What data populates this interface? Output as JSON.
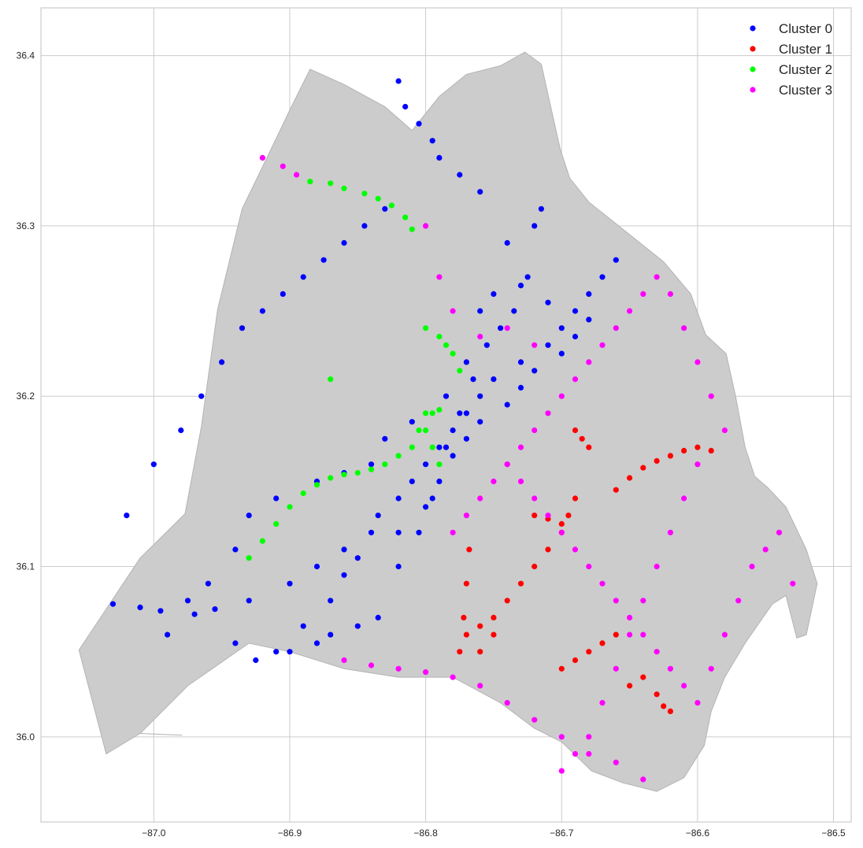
{
  "chart_data": {
    "type": "scatter",
    "title": "",
    "xlabel": "",
    "ylabel": "",
    "xlim": [
      -87.083,
      -86.487
    ],
    "ylim": [
      35.95,
      36.428
    ],
    "grid": true,
    "x_ticks": [
      -87.0,
      -86.9,
      -86.8,
      -86.7,
      -86.6,
      -86.5
    ],
    "x_tick_labels": [
      "−87.0",
      "−86.9",
      "−86.8",
      "−86.7",
      "−86.6",
      "−86.5"
    ],
    "y_ticks": [
      36.0,
      36.1,
      36.2,
      36.3,
      36.4
    ],
    "y_tick_labels": [
      "36.0",
      "36.1",
      "36.2",
      "36.3",
      "36.4"
    ],
    "background_region": {
      "name": "county-boundary",
      "fill": "#cccccc",
      "boundary": [
        [
          -86.979,
          36.001
        ],
        [
          -87.01,
          36.002
        ],
        [
          -87.035,
          35.99
        ],
        [
          -87.055,
          36.051
        ],
        [
          -87.01,
          36.105
        ],
        [
          -86.977,
          36.131
        ],
        [
          -86.965,
          36.182
        ],
        [
          -86.953,
          36.251
        ],
        [
          -86.935,
          36.31
        ],
        [
          -86.915,
          36.343
        ],
        [
          -86.9,
          36.368
        ],
        [
          -86.885,
          36.392
        ],
        [
          -86.86,
          36.383
        ],
        [
          -86.83,
          36.37
        ],
        [
          -86.81,
          36.356
        ],
        [
          -86.79,
          36.376
        ],
        [
          -86.77,
          36.389
        ],
        [
          -86.745,
          36.394
        ],
        [
          -86.727,
          36.402
        ],
        [
          -86.715,
          36.395
        ],
        [
          -86.708,
          36.37
        ],
        [
          -86.701,
          36.345
        ],
        [
          -86.694,
          36.328
        ],
        [
          -86.68,
          36.314
        ],
        [
          -86.658,
          36.3
        ],
        [
          -86.625,
          36.279
        ],
        [
          -86.605,
          36.26
        ],
        [
          -86.594,
          36.236
        ],
        [
          -86.579,
          36.225
        ],
        [
          -86.572,
          36.2
        ],
        [
          -86.565,
          36.17
        ],
        [
          -86.558,
          36.153
        ],
        [
          -86.548,
          36.146
        ],
        [
          -86.535,
          36.135
        ],
        [
          -86.52,
          36.11
        ],
        [
          -86.512,
          36.09
        ],
        [
          -86.52,
          36.06
        ],
        [
          -86.527,
          36.058
        ],
        [
          -86.535,
          36.083
        ],
        [
          -86.545,
          36.078
        ],
        [
          -86.565,
          36.055
        ],
        [
          -86.58,
          36.035
        ],
        [
          -86.59,
          36.015
        ],
        [
          -86.595,
          35.995
        ],
        [
          -86.61,
          35.976
        ],
        [
          -86.63,
          35.968
        ],
        [
          -86.655,
          35.973
        ],
        [
          -86.678,
          35.98
        ],
        [
          -86.7,
          35.997
        ],
        [
          -86.72,
          36.005
        ],
        [
          -86.745,
          36.02
        ],
        [
          -86.78,
          36.035
        ],
        [
          -86.82,
          36.035
        ],
        [
          -86.86,
          36.04
        ],
        [
          -86.9,
          36.05
        ],
        [
          -86.93,
          36.055
        ],
        [
          -86.975,
          36.03
        ],
        [
          -87.01,
          36.002
        ]
      ]
    },
    "series": [
      {
        "name": "Cluster 0",
        "color": "#0000ff",
        "x": [
          -87.03,
          -87.01,
          -86.995,
          -86.97,
          -86.955,
          -86.93,
          -86.9,
          -86.88,
          -86.86,
          -86.84,
          -86.835,
          -86.82,
          -86.81,
          -86.8,
          -86.79,
          -86.78,
          -86.77,
          -86.76,
          -86.75,
          -86.73,
          -86.71,
          -86.7,
          -86.69,
          -86.68,
          -86.67,
          -86.66,
          -86.74,
          -86.72,
          -86.715,
          -86.76,
          -86.775,
          -86.79,
          -86.795,
          -86.805,
          -86.815,
          -86.82,
          -86.83,
          -86.845,
          -86.86,
          -86.875,
          -86.89,
          -86.905,
          -86.92,
          -86.935,
          -86.95,
          -86.965,
          -86.98,
          -87.0,
          -87.02,
          -86.9,
          -86.88,
          -86.87,
          -86.85,
          -86.835,
          -86.82,
          -86.805,
          -86.795,
          -86.785,
          -86.775,
          -86.765,
          -86.755,
          -86.745,
          -86.735,
          -86.725,
          -86.81,
          -86.83,
          -86.84,
          -86.86,
          -86.88,
          -86.91,
          -86.93,
          -86.94,
          -86.96,
          -86.975,
          -86.99,
          -86.94,
          -86.925,
          -86.91,
          -86.89,
          -86.87,
          -86.86,
          -86.85,
          -86.82,
          -86.8,
          -86.79,
          -86.78,
          -86.77,
          -86.76,
          -86.74,
          -86.73,
          -86.72,
          -86.7,
          -86.69,
          -86.68,
          -86.71,
          -86.73,
          -86.75,
          -86.76,
          -86.77,
          -86.785
        ],
        "y": [
          36.078,
          36.076,
          36.074,
          36.072,
          36.075,
          36.08,
          36.09,
          36.1,
          36.11,
          36.12,
          36.13,
          36.14,
          36.15,
          36.16,
          36.17,
          36.18,
          36.19,
          36.2,
          36.21,
          36.22,
          36.23,
          36.24,
          36.25,
          36.26,
          36.27,
          36.28,
          36.29,
          36.3,
          36.31,
          36.32,
          36.33,
          36.34,
          36.35,
          36.36,
          36.37,
          36.385,
          36.31,
          36.3,
          36.29,
          36.28,
          36.27,
          36.26,
          36.25,
          36.24,
          36.22,
          36.2,
          36.18,
          36.16,
          36.13,
          36.05,
          36.055,
          36.06,
          36.065,
          36.07,
          36.1,
          36.12,
          36.14,
          36.17,
          36.19,
          36.21,
          36.23,
          36.24,
          36.25,
          36.27,
          36.185,
          36.175,
          36.16,
          36.155,
          36.15,
          36.14,
          36.13,
          36.11,
          36.09,
          36.08,
          36.06,
          36.055,
          36.045,
          36.05,
          36.065,
          36.08,
          36.095,
          36.105,
          36.12,
          36.135,
          36.15,
          36.165,
          36.175,
          36.185,
          36.195,
          36.205,
          36.215,
          36.225,
          36.235,
          36.245,
          36.255,
          36.265,
          36.26,
          36.25,
          36.22,
          36.2
        ]
      },
      {
        "name": "Cluster 1",
        "color": "#ff0000",
        "x": [
          -86.69,
          -86.685,
          -86.68,
          -86.69,
          -86.695,
          -86.7,
          -86.71,
          -86.72,
          -86.73,
          -86.74,
          -86.75,
          -86.76,
          -86.77,
          -86.775,
          -86.772,
          -86.77,
          -86.768,
          -86.66,
          -86.65,
          -86.64,
          -86.63,
          -86.62,
          -86.61,
          -86.6,
          -86.59,
          -86.7,
          -86.71,
          -86.72,
          -86.65,
          -86.64,
          -86.63,
          -86.625,
          -86.62,
          -86.66,
          -86.67,
          -86.68,
          -86.69,
          -86.7,
          -86.75,
          -86.76
        ],
        "y": [
          36.18,
          36.175,
          36.17,
          36.14,
          36.13,
          36.12,
          36.11,
          36.1,
          36.09,
          36.08,
          36.07,
          36.065,
          36.06,
          36.05,
          36.07,
          36.09,
          36.11,
          36.145,
          36.152,
          36.158,
          36.162,
          36.165,
          36.168,
          36.17,
          36.168,
          36.125,
          36.128,
          36.13,
          36.03,
          36.035,
          36.025,
          36.018,
          36.015,
          36.06,
          36.055,
          36.05,
          36.045,
          36.04,
          36.06,
          36.05
        ]
      },
      {
        "name": "Cluster 2",
        "color": "#00ff00",
        "x": [
          -86.93,
          -86.92,
          -86.91,
          -86.9,
          -86.89,
          -86.88,
          -86.87,
          -86.86,
          -86.85,
          -86.84,
          -86.83,
          -86.82,
          -86.81,
          -86.805,
          -86.8,
          -86.795,
          -86.79,
          -86.885,
          -86.87,
          -86.86,
          -86.845,
          -86.835,
          -86.825,
          -86.815,
          -86.81,
          -86.8,
          -86.79,
          -86.785,
          -86.78,
          -86.775,
          -86.87,
          -86.79,
          -86.795,
          -86.8
        ],
        "y": [
          36.105,
          36.115,
          36.125,
          36.135,
          36.143,
          36.148,
          36.152,
          36.154,
          36.155,
          36.157,
          36.16,
          36.165,
          36.17,
          36.18,
          36.19,
          36.19,
          36.192,
          36.326,
          36.325,
          36.322,
          36.319,
          36.316,
          36.312,
          36.305,
          36.298,
          36.24,
          36.235,
          36.23,
          36.225,
          36.215,
          36.21,
          36.16,
          36.17,
          36.18
        ]
      },
      {
        "name": "Cluster 3",
        "color": "#ff00ff",
        "x": [
          -86.92,
          -86.905,
          -86.895,
          -86.74,
          -86.73,
          -86.72,
          -86.71,
          -86.7,
          -86.69,
          -86.68,
          -86.67,
          -86.66,
          -86.65,
          -86.64,
          -86.63,
          -86.62,
          -86.61,
          -86.6,
          -86.59,
          -86.58,
          -86.57,
          -86.56,
          -86.55,
          -86.54,
          -86.53,
          -86.86,
          -86.84,
          -86.82,
          -86.8,
          -86.78,
          -86.76,
          -86.74,
          -86.72,
          -86.7,
          -86.68,
          -86.66,
          -86.64,
          -86.78,
          -86.77,
          -86.76,
          -86.75,
          -86.74,
          -86.73,
          -86.72,
          -86.71,
          -86.7,
          -86.69,
          -86.68,
          -86.67,
          -86.66,
          -86.65,
          -86.64,
          -86.63,
          -86.62,
          -86.61,
          -86.6,
          -86.59,
          -86.58,
          -86.6,
          -86.61,
          -86.62,
          -86.63,
          -86.64,
          -86.65,
          -86.66,
          -86.67,
          -86.68,
          -86.69,
          -86.7,
          -86.72,
          -86.74,
          -86.76,
          -86.78,
          -86.79,
          -86.8
        ],
        "y": [
          36.34,
          36.335,
          36.33,
          36.16,
          36.15,
          36.14,
          36.13,
          36.12,
          36.11,
          36.1,
          36.09,
          36.08,
          36.07,
          36.06,
          36.05,
          36.04,
          36.03,
          36.02,
          36.04,
          36.06,
          36.08,
          36.1,
          36.11,
          36.12,
          36.09,
          36.045,
          36.042,
          36.04,
          36.038,
          36.035,
          36.03,
          36.02,
          36.01,
          36.0,
          35.99,
          35.985,
          35.975,
          36.12,
          36.13,
          36.14,
          36.15,
          36.16,
          36.17,
          36.18,
          36.19,
          36.2,
          36.21,
          36.22,
          36.23,
          36.24,
          36.25,
          36.26,
          36.27,
          36.26,
          36.24,
          36.22,
          36.2,
          36.18,
          36.16,
          36.14,
          36.12,
          36.1,
          36.08,
          36.06,
          36.04,
          36.02,
          36.0,
          35.99,
          35.98,
          36.23,
          36.24,
          36.235,
          36.25,
          36.27,
          36.3
        ]
      }
    ],
    "legend": {
      "location": "top-right",
      "entries": [
        "Cluster 0",
        "Cluster 1",
        "Cluster 2",
        "Cluster 3"
      ]
    }
  }
}
